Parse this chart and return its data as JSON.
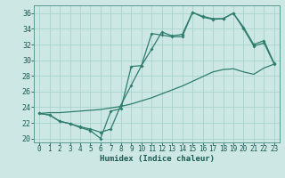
{
  "xlabel": "Humidex (Indice chaleur)",
  "bg_color": "#cde8e4",
  "grid_color": "#a8d4ce",
  "line_color": "#2e7d6e",
  "xlim": [
    -0.5,
    23.5
  ],
  "ylim": [
    19.5,
    37.0
  ],
  "xticks": [
    0,
    1,
    2,
    3,
    4,
    5,
    6,
    7,
    8,
    9,
    10,
    11,
    12,
    13,
    14,
    15,
    16,
    17,
    18,
    19,
    20,
    21,
    22,
    23
  ],
  "yticks": [
    20,
    22,
    24,
    26,
    28,
    30,
    32,
    34,
    36
  ],
  "line1_x": [
    0,
    1,
    2,
    3,
    4,
    5,
    6,
    7,
    8,
    9,
    10,
    11,
    12,
    13,
    14,
    15,
    16,
    17,
    18,
    19,
    20,
    21,
    22,
    23
  ],
  "line1_y": [
    23.2,
    23.0,
    22.2,
    21.9,
    21.4,
    21.0,
    20.0,
    23.5,
    23.8,
    29.2,
    29.3,
    33.4,
    33.2,
    33.0,
    33.0,
    36.1,
    35.5,
    35.2,
    35.3,
    36.0,
    34.0,
    31.8,
    32.2,
    29.5
  ],
  "line2_x": [
    0,
    1,
    2,
    3,
    4,
    5,
    6,
    7,
    8,
    9,
    10,
    11,
    12,
    13,
    14,
    15,
    16,
    17,
    18,
    19,
    20,
    21,
    22,
    23
  ],
  "line2_y": [
    23.2,
    23.0,
    22.2,
    21.9,
    21.5,
    21.2,
    20.8,
    21.2,
    24.3,
    26.8,
    29.3,
    31.4,
    33.6,
    33.1,
    33.3,
    36.1,
    35.6,
    35.3,
    35.3,
    36.0,
    34.2,
    32.0,
    32.5,
    29.6
  ],
  "line3_x": [
    0,
    1,
    2,
    3,
    4,
    5,
    6,
    7,
    8,
    9,
    10,
    11,
    12,
    13,
    14,
    15,
    16,
    17,
    18,
    19,
    20,
    21,
    22,
    23
  ],
  "line3_y": [
    23.2,
    23.3,
    23.3,
    23.4,
    23.5,
    23.6,
    23.7,
    23.9,
    24.1,
    24.4,
    24.8,
    25.2,
    25.7,
    26.2,
    26.7,
    27.3,
    27.9,
    28.5,
    28.8,
    28.9,
    28.5,
    28.2,
    29.0,
    29.5
  ]
}
